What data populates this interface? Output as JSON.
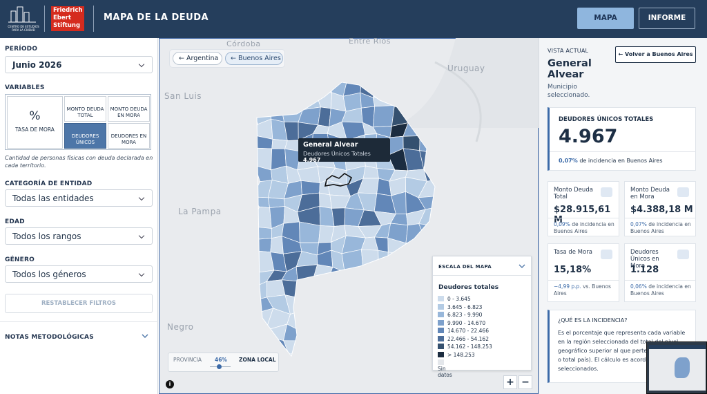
{
  "header": {
    "logo_text": "CENTRO DE ESTUDIOS PARA LA CIUDAD",
    "partner": [
      "Friedrich",
      "Ebert",
      "Stiftung"
    ],
    "title": "MAPA DE LA DEUDA",
    "nav": [
      "MAPA",
      "INFORME"
    ]
  },
  "sidebar": {
    "period_label": "PERÍODO",
    "period": "Junio 2026",
    "variables_label": "VARIABLES",
    "percent_icon": "%",
    "variables": [
      "TASA DE MORA",
      "MONTO DEUDA TOTAL",
      "MONTO DEUDA EN MORA",
      "DEUDORES ÚNICOS",
      "DEUDORES EN MORA"
    ],
    "variable_description": "Cantidad de personas físicas con deuda declarada en cada territorio.",
    "filters": [
      {
        "label": "CATEGORÍA DE ENTIDAD",
        "value": "Todas las entidades"
      },
      {
        "label": "EDAD",
        "value": "Todos los rangos"
      },
      {
        "label": "GÉNERO",
        "value": "Todos los géneros"
      }
    ],
    "reset": "RESTABLECER FILTROS",
    "notes": "NOTAS METODOLÓGICAS"
  },
  "map": {
    "breadcrumbs": [
      "Argentina",
      "Buenos Aires"
    ],
    "place_labels": [
      "Córdoba",
      "Entre Ríos",
      "Uruguay",
      "San Luis",
      "La Pampa",
      "Negro"
    ],
    "tooltip": {
      "name": "General Alvear",
      "metric": "Deudores Únicos Totales",
      "value": "4.967"
    },
    "legend": {
      "toggle": "ESCALA DEL MAPA",
      "title": "Deudores totales",
      "no_data": "Sin datos",
      "items": [
        {
          "label": "0 - 3.645",
          "color": "#cddcec"
        },
        {
          "label": "3.645 - 6.823",
          "color": "#b3cbe4"
        },
        {
          "label": "6.823 - 9.990",
          "color": "#98b7da"
        },
        {
          "label": "9.990 - 14.670",
          "color": "#7ea1cc"
        },
        {
          "label": "14.670 - 22.466",
          "color": "#6287b8"
        },
        {
          "label": "22.466 - 54.162",
          "color": "#4c6d99"
        },
        {
          "label": "54.162 - 148.253",
          "color": "#34506f"
        },
        {
          "label": "> 148.253",
          "color": "#1b2c40"
        }
      ]
    },
    "slider": {
      "left": "PROVINCIA",
      "value": "46%",
      "right": "ZONA LOCAL"
    },
    "zoom": [
      "+",
      "−"
    ]
  },
  "panel": {
    "view_label": "VISTA ACTUAL",
    "back": "Volver a Buenos Aires",
    "name": "General Alvear",
    "kind": "Municipio seleccionado.",
    "main": {
      "label": "DEUDORES ÚNICOS TOTALES",
      "value": "4.967",
      "pct": "0,07%",
      "note": "de incidencia en Buenos Aires"
    },
    "cards": [
      {
        "title": "Monto Deuda Total",
        "value": "$28.915,61 M",
        "pct": "0,09%",
        "note": "de incidencia en Buenos Aires"
      },
      {
        "title": "Monto Deuda en Mora",
        "value": "$4.388,18 M",
        "pct": "0,07%",
        "note": "de incidencia en Buenos Aires"
      },
      {
        "title": "Tasa de Mora",
        "value": "15,18%",
        "pct": "−4,99 p.p.",
        "note": "vs. Buenos Aires"
      },
      {
        "title": "Deudores Únicos en Mora",
        "value": "1.128",
        "pct": "0,06%",
        "note": "de incidencia en Buenos Aires"
      }
    ],
    "incidence": {
      "title": "¿QUÉ ES LA INCIDENCIA?",
      "text": "Es el porcentaje que representa cada variable en la región seleccionada del total del nivel geográfico superior al que pertenece (provincia o total país). El cálculo es acorde a los filtros seleccionados."
    }
  }
}
